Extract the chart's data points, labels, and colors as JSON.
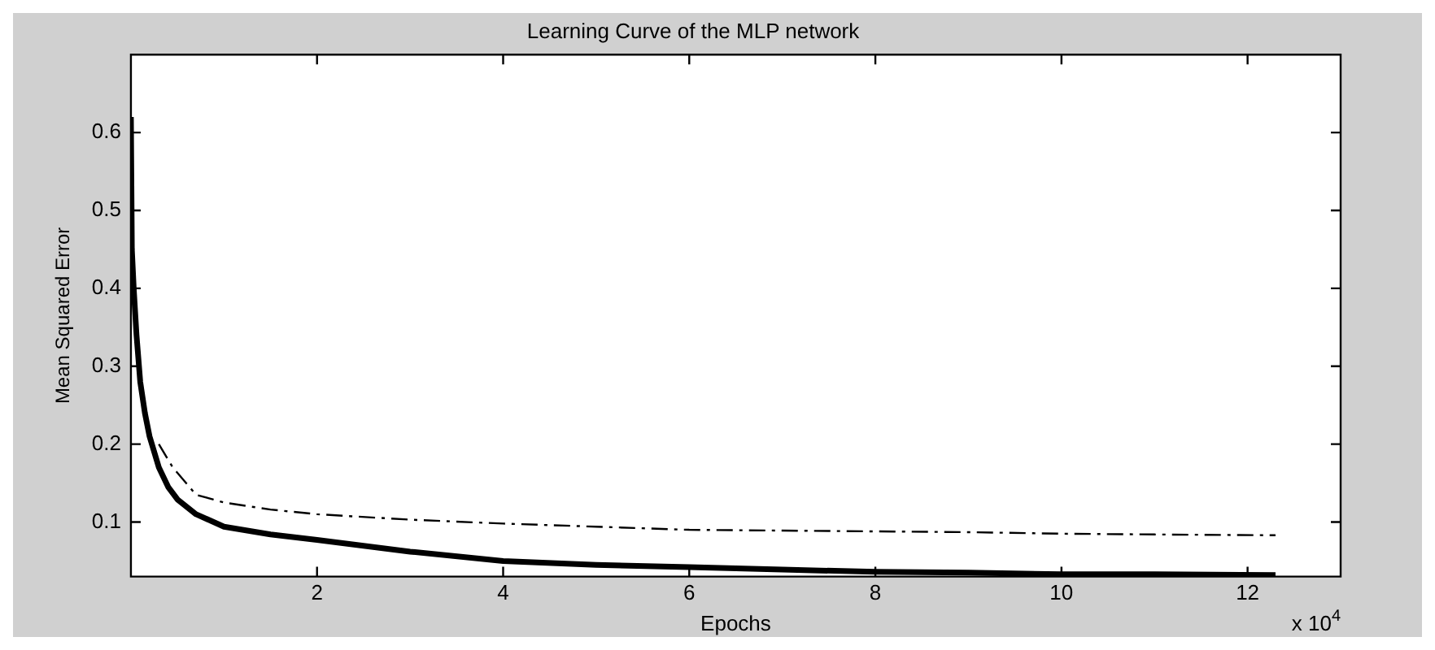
{
  "chart_data": {
    "type": "line",
    "title": "Learning Curve of the MLP network",
    "xlabel": "Epochs",
    "ylabel": "Mean Squared Error",
    "annotations": [
      "x 10$^{4}$"
    ],
    "xlim": [
      0,
      13
    ],
    "xticks": [
      2,
      4,
      6,
      8,
      10,
      12
    ],
    "ylim": [
      0.03,
      0.7
    ],
    "yticks": [
      0.1,
      0.2,
      0.3,
      0.4,
      0.5,
      0.6
    ],
    "grid": false,
    "legend": false,
    "marker": "none",
    "series": [
      {
        "color": "#000000",
        "line_style": "solid",
        "x": [
          0,
          0.01,
          0.03,
          0.06,
          0.1,
          0.15,
          0.2,
          0.3,
          0.4,
          0.5,
          0.7,
          1,
          1.5,
          2,
          3,
          4,
          5,
          6,
          7,
          8,
          9,
          10,
          11,
          12.3
        ],
        "values": [
          0.62,
          0.45,
          0.4,
          0.34,
          0.28,
          0.24,
          0.21,
          0.17,
          0.145,
          0.129,
          0.11,
          0.094,
          0.084,
          0.077,
          0.062,
          0.05,
          0.045,
          0.042,
          0.039,
          0.036,
          0.035,
          0.033,
          0.033,
          0.032
        ]
      },
      {
        "color": "#000000",
        "line_style": "dashed",
        "x": [
          0.3,
          0.45,
          0.7,
          1,
          1.5,
          2,
          3,
          4,
          5,
          6,
          7,
          8,
          9,
          10,
          11,
          12.3
        ],
        "values": [
          0.2,
          0.17,
          0.135,
          0.125,
          0.116,
          0.11,
          0.103,
          0.098,
          0.094,
          0.09,
          0.089,
          0.088,
          0.087,
          0.085,
          0.084,
          0.083
        ]
      }
    ]
  }
}
